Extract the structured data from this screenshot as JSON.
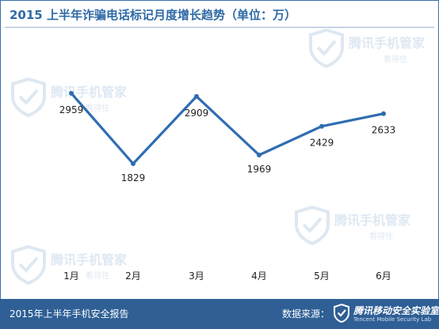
{
  "title": "2015 上半年诈骗电话标记月度增长趋势（单位：万）",
  "footer": {
    "left_text": "2015年上半年手机安全报告",
    "source_label": "数据来源：",
    "source_logo_text": "腾讯移动安全实验室",
    "source_logo_subtext": "Tencent Mobile Security Lab"
  },
  "watermark": {
    "brand": "腾讯手机管家",
    "slogan": "看得住"
  },
  "colors": {
    "line": "#2f6db1",
    "marker": "#2f6db1",
    "axis_text": "#222222",
    "footer_bg": "#2f5f95",
    "title": "#2e6aa6",
    "watermark": "#dbe6f1"
  },
  "chart_data": {
    "type": "line",
    "categories": [
      "1月",
      "2月",
      "3月",
      "4月",
      "5月",
      "6月"
    ],
    "values": [
      2959,
      1829,
      2909,
      1969,
      2429,
      2633
    ],
    "data_labels": [
      "2959",
      "1829",
      "2909",
      "1969",
      "2429",
      "2633"
    ],
    "ylim": [
      1500,
      3300
    ],
    "xlabel": "",
    "ylabel": "",
    "grid": false,
    "legend": "none"
  }
}
